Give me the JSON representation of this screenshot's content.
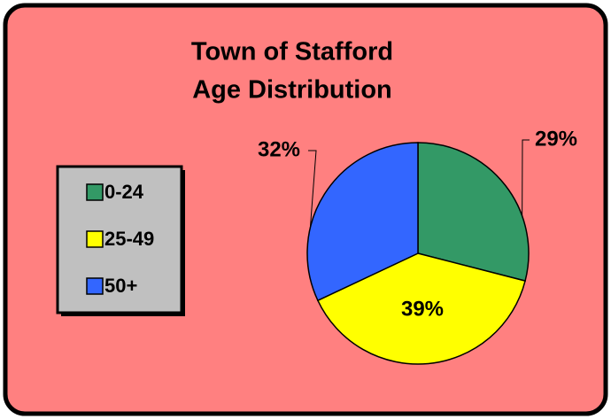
{
  "chart_data": {
    "type": "pie",
    "title": [
      "Town of Stafford",
      "Age Distribution"
    ],
    "categories": [
      "0-24",
      "25-49",
      "50+"
    ],
    "values": [
      29,
      39,
      32
    ],
    "value_labels": [
      "29%",
      "39%",
      "32%"
    ],
    "colors": [
      "#339966",
      "#FFFF00",
      "#3366FF"
    ],
    "legend": "left"
  }
}
